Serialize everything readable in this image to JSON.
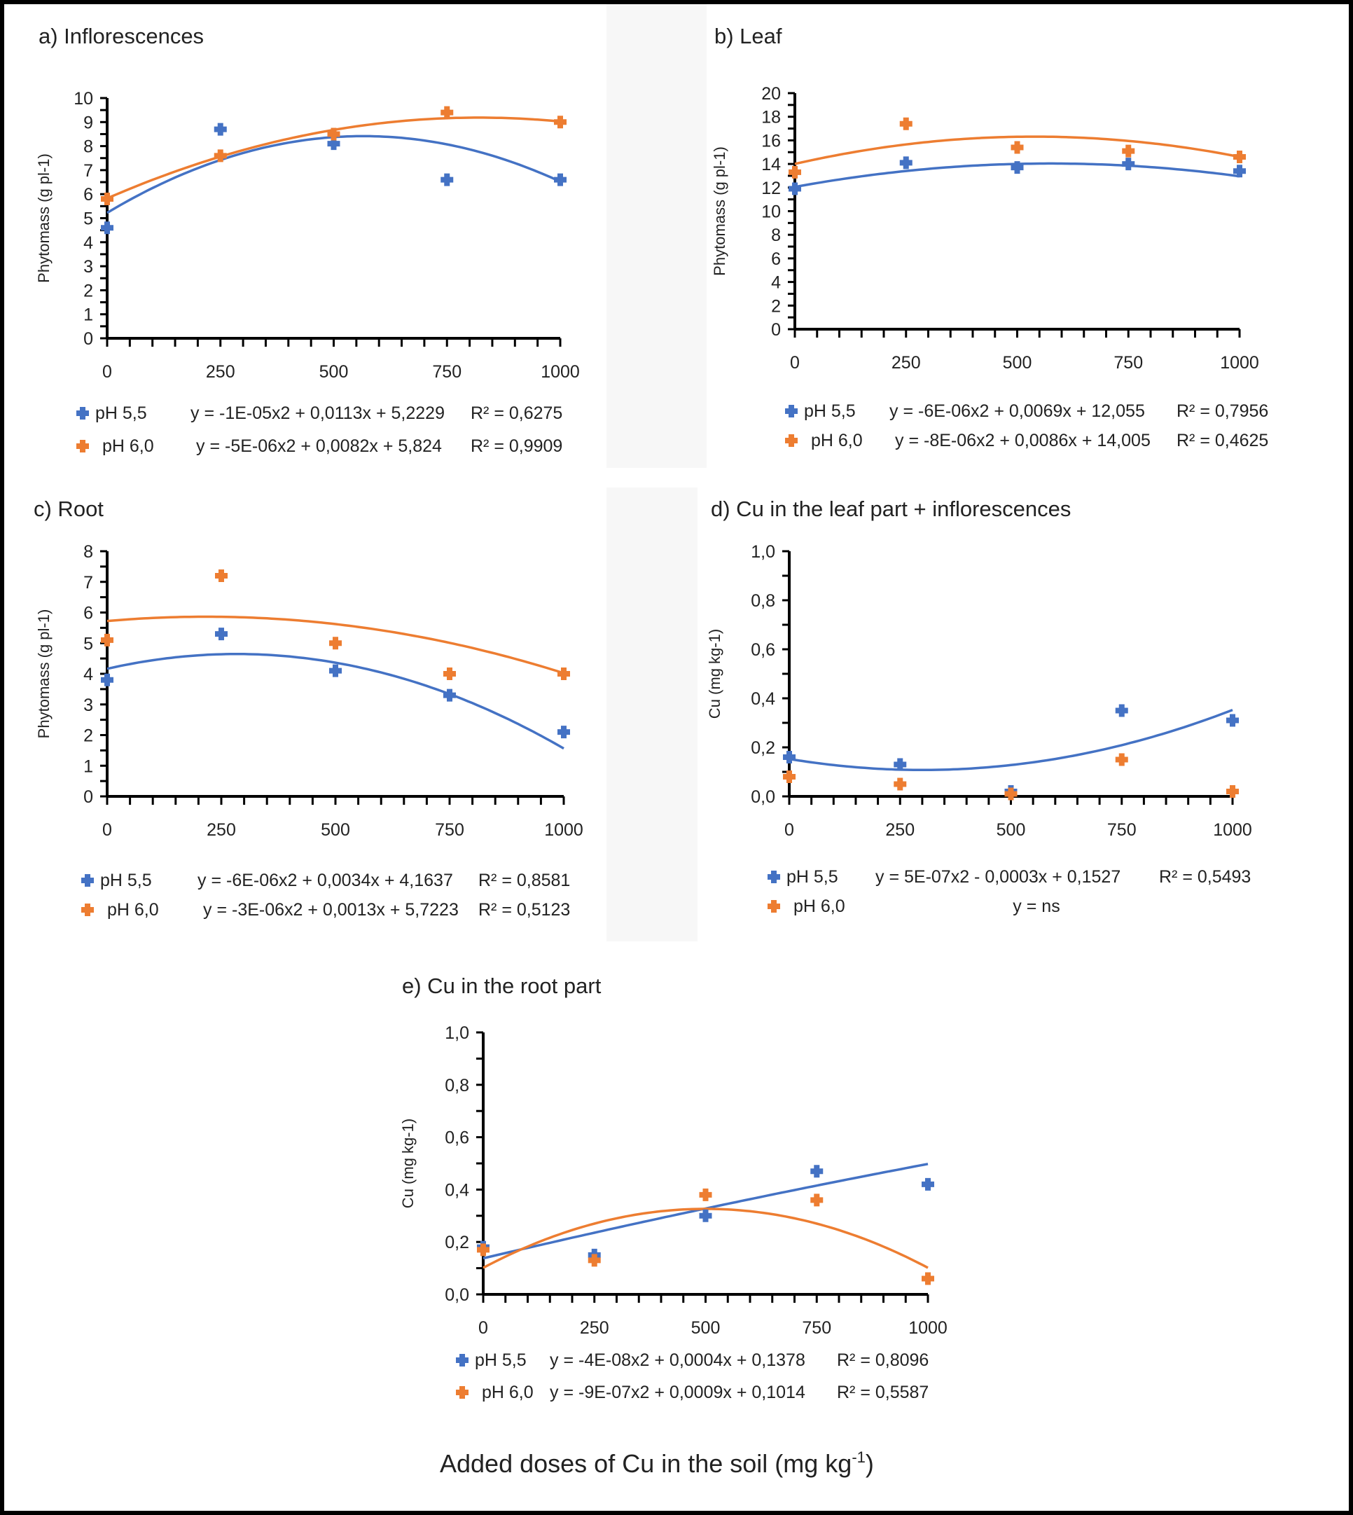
{
  "figure": {
    "shared_xlabel": "Added doses of Cu in the soil (mg kg",
    "shared_xlabel_sup": "-1",
    "shared_xlabel_close": ")",
    "colors": {
      "pH55": "#4472C4",
      "pH60": "#ED7D31",
      "axis": "#000000",
      "text": "#222222"
    }
  },
  "chart_data": [
    {
      "id": "a",
      "type": "scatter",
      "title": "a) Inflorescences",
      "ylabel": "Phytomass (g pl-1)",
      "xlabel": "",
      "x_ticks": [
        "0",
        "250",
        "500",
        "750",
        "1000"
      ],
      "y_ticks": [
        "0",
        "1",
        "2",
        "3",
        "4",
        "5",
        "6",
        "7",
        "8",
        "9",
        "10"
      ],
      "xlim": [
        0,
        1000
      ],
      "ylim": [
        0,
        10
      ],
      "grid": false,
      "legend": "bottom",
      "x": [
        0,
        250,
        500,
        750,
        1000
      ],
      "series": [
        {
          "name": "pH 5,5",
          "color": "#4472C4",
          "values": [
            4.6,
            8.7,
            8.1,
            6.6,
            6.6
          ],
          "trend": {
            "a": -1e-05,
            "b": 0.0113,
            "c": 5.2229
          },
          "equation": "y = -1E-05x2 + 0,0113x + 5,2229",
          "r2": "R² = 0,6275"
        },
        {
          "name": "pH 6,0",
          "color": "#ED7D31",
          "values": [
            5.8,
            7.6,
            8.5,
            9.4,
            9.0
          ],
          "trend": {
            "a": -5e-06,
            "b": 0.0082,
            "c": 5.824
          },
          "equation": "y = -5E-06x2 + 0,0082x + 5,824",
          "r2": "R² = 0,9909"
        }
      ]
    },
    {
      "id": "b",
      "type": "scatter",
      "title": "b) Leaf",
      "ylabel": "Phytomass (g pl-1)",
      "xlabel": "",
      "x_ticks": [
        "0",
        "250",
        "500",
        "750",
        "1000"
      ],
      "y_ticks": [
        "0",
        "2",
        "4",
        "6",
        "8",
        "10",
        "12",
        "14",
        "16",
        "18",
        "20"
      ],
      "xlim": [
        0,
        1000
      ],
      "ylim": [
        0,
        20
      ],
      "grid": false,
      "legend": "bottom",
      "x": [
        0,
        250,
        500,
        750,
        1000
      ],
      "series": [
        {
          "name": "pH 5,5",
          "color": "#4472C4",
          "values": [
            11.9,
            14.1,
            13.7,
            14.0,
            13.4
          ],
          "trend": {
            "a": -6e-06,
            "b": 0.0069,
            "c": 12.055
          },
          "equation": "y = -6E-06x2 + 0,0069x + 12,055",
          "r2": "R² = 0,7956"
        },
        {
          "name": "pH 6,0",
          "color": "#ED7D31",
          "values": [
            13.3,
            17.4,
            15.4,
            15.1,
            14.6
          ],
          "trend": {
            "a": -8e-06,
            "b": 0.0086,
            "c": 14.005
          },
          "equation": "y = -8E-06x2 + 0,0086x + 14,005",
          "r2": "R² = 0,4625"
        }
      ]
    },
    {
      "id": "c",
      "type": "scatter",
      "title": "c) Root",
      "ylabel": "Phytomass (g pl-1)",
      "xlabel": "",
      "x_ticks": [
        "0",
        "250",
        "500",
        "750",
        "1000"
      ],
      "y_ticks": [
        "0",
        "1",
        "2",
        "3",
        "4",
        "5",
        "6",
        "7",
        "8"
      ],
      "xlim": [
        0,
        1000
      ],
      "ylim": [
        0,
        8
      ],
      "grid": false,
      "legend": "bottom",
      "x": [
        0,
        250,
        500,
        750,
        1000
      ],
      "series": [
        {
          "name": "pH 5,5",
          "color": "#4472C4",
          "values": [
            3.8,
            5.3,
            4.1,
            3.3,
            2.1
          ],
          "trend": {
            "a": -6e-06,
            "b": 0.0034,
            "c": 4.1637
          },
          "equation": "y = -6E-06x2 + 0,0034x + 4,1637",
          "r2": "R² = 0,8581"
        },
        {
          "name": "pH 6,0",
          "color": "#ED7D31",
          "values": [
            5.1,
            7.2,
            5.0,
            4.0,
            4.0
          ],
          "trend": {
            "a": -3e-06,
            "b": 0.0013,
            "c": 5.7223
          },
          "equation": "y = -3E-06x2 + 0,0013x + 5,7223",
          "r2": "R² = 0,5123"
        }
      ]
    },
    {
      "id": "d",
      "type": "scatter",
      "title": "d) Cu in the leaf part + inflorescences",
      "ylabel": "Cu  (mg kg-1)",
      "xlabel": "",
      "x_ticks": [
        "0",
        "250",
        "500",
        "750",
        "1000"
      ],
      "y_ticks": [
        "0,0",
        "0,2",
        "0,4",
        "0,6",
        "0,8",
        "1,0"
      ],
      "xlim": [
        0,
        1000
      ],
      "ylim": [
        0,
        1.0
      ],
      "grid": false,
      "legend": "bottom",
      "x": [
        0,
        250,
        500,
        750,
        1000
      ],
      "series": [
        {
          "name": "pH 5,5",
          "color": "#4472C4",
          "values": [
            0.16,
            0.13,
            0.02,
            0.35,
            0.31
          ],
          "trend": {
            "a": 5e-07,
            "b": -0.0003,
            "c": 0.1527
          },
          "equation": "y = 5E-07x2 - 0,0003x + 0,1527",
          "r2": "R² = 0,5493"
        },
        {
          "name": "pH 6,0",
          "color": "#ED7D31",
          "values": [
            0.08,
            0.05,
            0.01,
            0.15,
            0.02
          ],
          "trend": null,
          "equation": "y = ns",
          "r2": ""
        }
      ]
    },
    {
      "id": "e",
      "type": "scatter",
      "title": "e) Cu in the root part",
      "ylabel": "Cu  (mg kg-1)",
      "xlabel": "",
      "x_ticks": [
        "0",
        "250",
        "500",
        "750",
        "1000"
      ],
      "y_ticks": [
        "0,0",
        "0,2",
        "0,4",
        "0,6",
        "0,8",
        "1,0"
      ],
      "xlim": [
        0,
        1000
      ],
      "ylim": [
        0,
        1.0
      ],
      "grid": false,
      "legend": "bottom",
      "x": [
        0,
        250,
        500,
        750,
        1000
      ],
      "series": [
        {
          "name": "pH 5,5",
          "color": "#4472C4",
          "values": [
            0.18,
            0.15,
            0.3,
            0.47,
            0.42
          ],
          "trend": {
            "a": -4e-08,
            "b": 0.0004,
            "c": 0.1378
          },
          "equation": "y = -4E-08x2 + 0,0004x + 0,1378",
          "r2": "R² = 0,8096"
        },
        {
          "name": "pH 6,0",
          "color": "#ED7D31",
          "values": [
            0.17,
            0.13,
            0.38,
            0.36,
            0.06
          ],
          "trend": {
            "a": -9e-07,
            "b": 0.0009,
            "c": 0.1014
          },
          "equation": "y = -9E-07x2 + 0,0009x + 0,1014",
          "r2": "R² = 0,5587"
        }
      ]
    }
  ]
}
